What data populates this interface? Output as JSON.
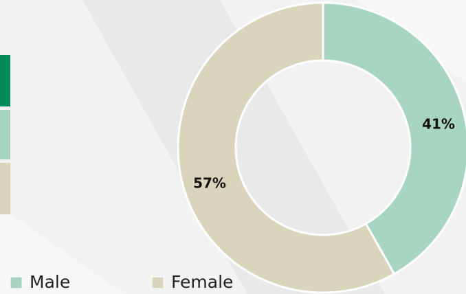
{
  "chart_data": {
    "type": "donut",
    "categories": [
      "Male",
      "Female"
    ],
    "values": [
      41,
      57
    ],
    "value_labels": [
      "41%",
      "57%"
    ],
    "colors": [
      "#a8d5c2",
      "#d9d4bc"
    ],
    "legend": "bottom-left"
  }
}
